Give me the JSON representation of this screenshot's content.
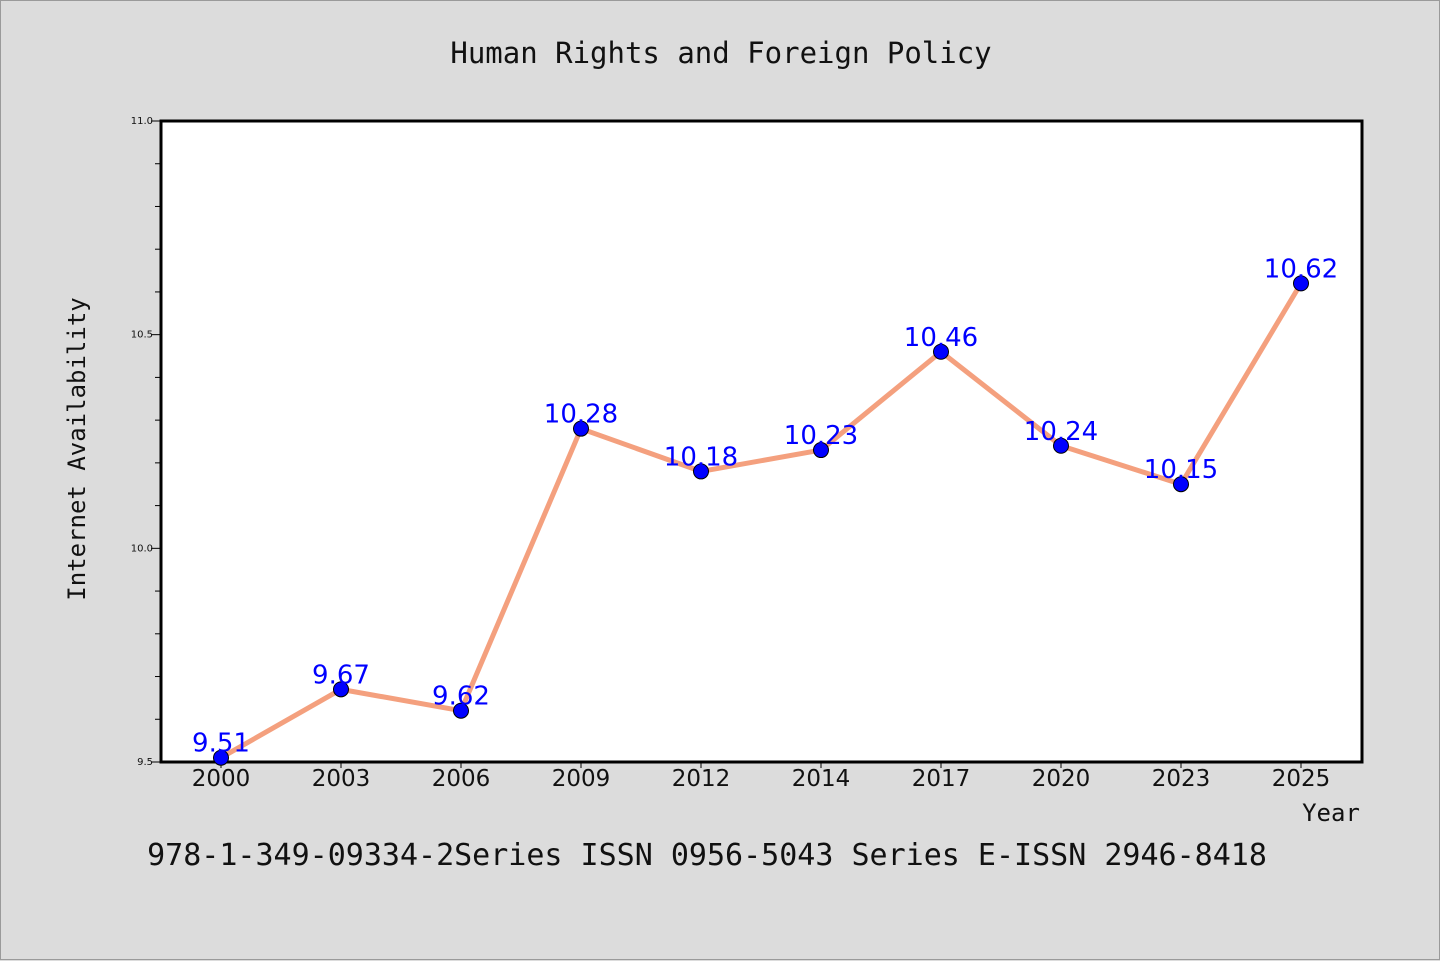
{
  "chart_data": {
    "type": "line",
    "title": "Human Rights and Foreign Policy",
    "xlabel": "Year",
    "ylabel": "Internet Availability",
    "categories": [
      "2000",
      "2003",
      "2006",
      "2009",
      "2012",
      "2014",
      "2017",
      "2020",
      "2023",
      "2025"
    ],
    "series": [
      {
        "values": [
          9.51,
          9.67,
          9.62,
          10.28,
          10.18,
          10.23,
          10.46,
          10.24,
          10.15,
          10.62
        ]
      }
    ],
    "data_labels": [
      "9.51",
      "9.67",
      "9.62",
      "10.28",
      "10.18",
      "10.23",
      "10.46",
      "10.24",
      "10.15",
      "10.62"
    ],
    "yticks": [
      "9.5",
      "10.0",
      "10.5",
      "11.0"
    ],
    "ylim": [
      9.5,
      11.0
    ],
    "grid": false,
    "colors": {
      "line": "#f4a07e",
      "marker": "#0000ff",
      "label": "#0000ff",
      "plot_bg": "#ffffff",
      "page_bg": "#dcdcdc"
    }
  },
  "footer": "978-1-349-09334-2Series ISSN 0956-5043 Series E-ISSN 2946-8418"
}
